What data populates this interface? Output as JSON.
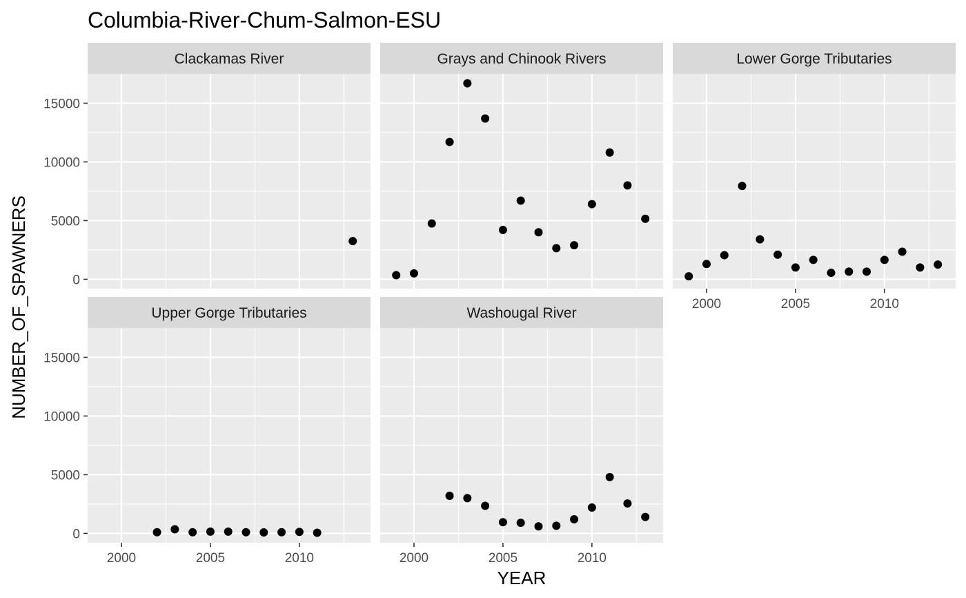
{
  "chart_data": {
    "type": "scatter",
    "title": "Columbia-River-Chum-Salmon-ESU",
    "xlabel": "YEAR",
    "ylabel": "NUMBER_OF_SPAWNERS",
    "xlim": [
      1998.1,
      2014.0
    ],
    "ylim": [
      -800,
      17500
    ],
    "x_ticks": [
      2000,
      2005,
      2010
    ],
    "y_ticks": [
      0,
      5000,
      10000,
      15000
    ],
    "grid": true,
    "panel_background": "#ebebeb",
    "strip_background": "#d9d9d9",
    "point_color": "#000000",
    "panels": [
      {
        "name": "Clackamas River",
        "points": [
          {
            "x": 2013,
            "y": 3250
          }
        ]
      },
      {
        "name": "Grays and Chinook Rivers",
        "points": [
          {
            "x": 1999,
            "y": 350
          },
          {
            "x": 2000,
            "y": 500
          },
          {
            "x": 2001,
            "y": 4750
          },
          {
            "x": 2002,
            "y": 11700
          },
          {
            "x": 2003,
            "y": 16700
          },
          {
            "x": 2004,
            "y": 13700
          },
          {
            "x": 2005,
            "y": 4200
          },
          {
            "x": 2006,
            "y": 6700
          },
          {
            "x": 2007,
            "y": 4000
          },
          {
            "x": 2008,
            "y": 2650
          },
          {
            "x": 2009,
            "y": 2900
          },
          {
            "x": 2010,
            "y": 6400
          },
          {
            "x": 2011,
            "y": 10800
          },
          {
            "x": 2012,
            "y": 8000
          },
          {
            "x": 2013,
            "y": 5150
          }
        ]
      },
      {
        "name": "Lower Gorge Tributaries",
        "points": [
          {
            "x": 1999,
            "y": 250
          },
          {
            "x": 2000,
            "y": 1300
          },
          {
            "x": 2001,
            "y": 2050
          },
          {
            "x": 2002,
            "y": 7950
          },
          {
            "x": 2003,
            "y": 3400
          },
          {
            "x": 2004,
            "y": 2100
          },
          {
            "x": 2005,
            "y": 1000
          },
          {
            "x": 2006,
            "y": 1650
          },
          {
            "x": 2007,
            "y": 550
          },
          {
            "x": 2008,
            "y": 650
          },
          {
            "x": 2009,
            "y": 650
          },
          {
            "x": 2010,
            "y": 1650
          },
          {
            "x": 2011,
            "y": 2350
          },
          {
            "x": 2012,
            "y": 1000
          },
          {
            "x": 2013,
            "y": 1250
          }
        ]
      },
      {
        "name": "Upper Gorge Tributaries",
        "points": [
          {
            "x": 2002,
            "y": 100
          },
          {
            "x": 2003,
            "y": 350
          },
          {
            "x": 2004,
            "y": 100
          },
          {
            "x": 2005,
            "y": 150
          },
          {
            "x": 2006,
            "y": 150
          },
          {
            "x": 2007,
            "y": 100
          },
          {
            "x": 2008,
            "y": 80
          },
          {
            "x": 2009,
            "y": 100
          },
          {
            "x": 2010,
            "y": 130
          },
          {
            "x": 2011,
            "y": 50
          }
        ]
      },
      {
        "name": "Washougal River",
        "points": [
          {
            "x": 2002,
            "y": 3200
          },
          {
            "x": 2003,
            "y": 3000
          },
          {
            "x": 2004,
            "y": 2350
          },
          {
            "x": 2005,
            "y": 950
          },
          {
            "x": 2006,
            "y": 900
          },
          {
            "x": 2007,
            "y": 600
          },
          {
            "x": 2008,
            "y": 650
          },
          {
            "x": 2009,
            "y": 1200
          },
          {
            "x": 2010,
            "y": 2200
          },
          {
            "x": 2011,
            "y": 4800
          },
          {
            "x": 2012,
            "y": 2550
          },
          {
            "x": 2013,
            "y": 1400
          }
        ]
      }
    ]
  }
}
